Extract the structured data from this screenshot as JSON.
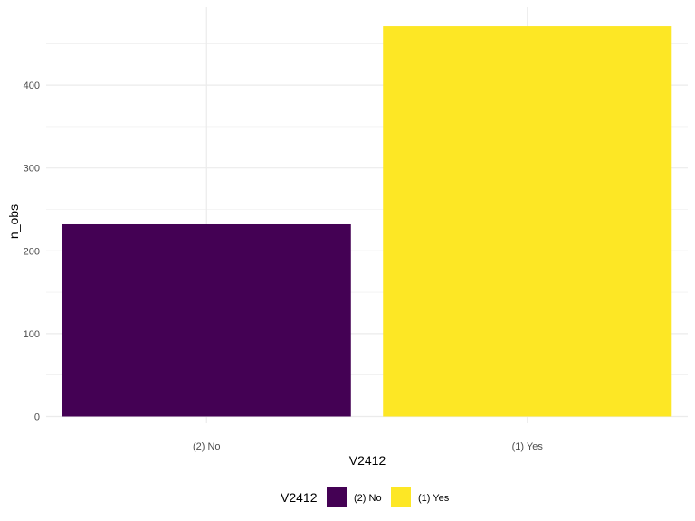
{
  "chart_data": {
    "type": "bar",
    "categories": [
      "(2) No",
      "(1) Yes"
    ],
    "values": [
      232,
      471
    ],
    "xlabel": "V2412",
    "ylabel": "n_obs",
    "ylim": [
      0,
      471
    ],
    "yticks": [
      0,
      100,
      200,
      300,
      400
    ],
    "colors": [
      "#440154",
      "#FDE725"
    ],
    "legend": {
      "title": "V2412",
      "position": "bottom",
      "items": [
        "(2) No",
        "(1) Yes"
      ]
    },
    "grid": true
  }
}
